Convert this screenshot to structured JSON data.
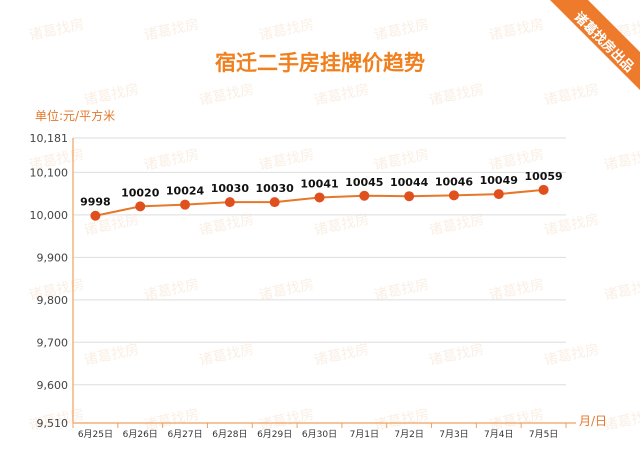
{
  "chart_data": {
    "type": "line",
    "title": "宿迁二手房挂牌价趋势",
    "ylabel": "单位:元/平方米",
    "xlabel": "月/日",
    "categories": [
      "6月25日",
      "6月26日",
      "6月27日",
      "6月28日",
      "6月29日",
      "6月30日",
      "7月1日",
      "7月2日",
      "7月3日",
      "7月4日",
      "7月5日"
    ],
    "series": [
      {
        "values": [
          9998,
          10020,
          10024,
          10030,
          10030,
          10041,
          10045,
          10044,
          10046,
          10049,
          10059
        ]
      }
    ],
    "yticks": [
      "9,510",
      "9,600",
      "9,700",
      "9,800",
      "9,900",
      "10,000",
      "10,100",
      "10,181"
    ],
    "ytick_values": [
      9510,
      9600,
      9700,
      9800,
      9900,
      10000,
      10100,
      10181
    ],
    "ylim": [
      9510,
      10181
    ],
    "grid": true,
    "colors": {
      "line": "#e6782b",
      "marker": "#e0501f",
      "title": "#f07f1d",
      "axis": "#f0a060",
      "grid": "#dddddd",
      "ribbon": "#ee7b2c"
    }
  },
  "badge": {
    "text": "诸葛找房出品"
  },
  "watermark": {
    "text": "诸葛找房"
  }
}
